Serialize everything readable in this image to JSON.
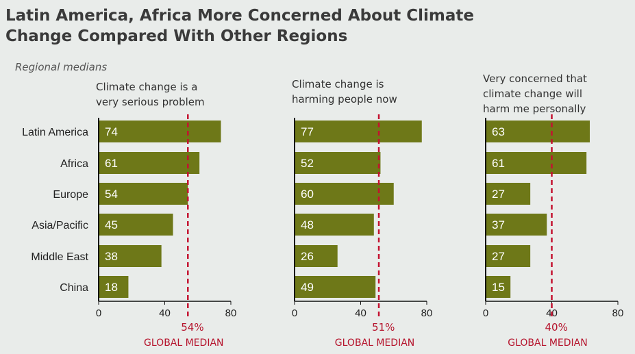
{
  "title_line1": "Latin America, Africa More Concerned About Climate",
  "title_line2": "Change Compared With Other Regions",
  "subtitle": "Regional medians",
  "chart_data": {
    "type": "bar",
    "orientation": "horizontal",
    "categories": [
      "Latin America",
      "Africa",
      "Europe",
      "Asia/Pacific",
      "Middle East",
      "China"
    ],
    "xlim": [
      0,
      80
    ],
    "ticks": [
      0,
      40,
      80
    ],
    "bar_color": "#6e7818",
    "median_color": "#c41230",
    "median_caption": "GLOBAL MEDIAN",
    "panels": [
      {
        "title_lines": [
          "Climate change is a",
          "very serious problem"
        ],
        "values": [
          74,
          61,
          54,
          45,
          38,
          18
        ],
        "median": 54,
        "median_label": "54%"
      },
      {
        "title_lines": [
          "Climate change is",
          "harming people now"
        ],
        "values": [
          77,
          52,
          60,
          48,
          26,
          49
        ],
        "median": 51,
        "median_label": "51%"
      },
      {
        "title_lines": [
          "Very concerned that",
          "climate change will",
          "harm me personally"
        ],
        "values": [
          63,
          61,
          27,
          37,
          27,
          15
        ],
        "median": 40,
        "median_label": "40%"
      }
    ]
  }
}
